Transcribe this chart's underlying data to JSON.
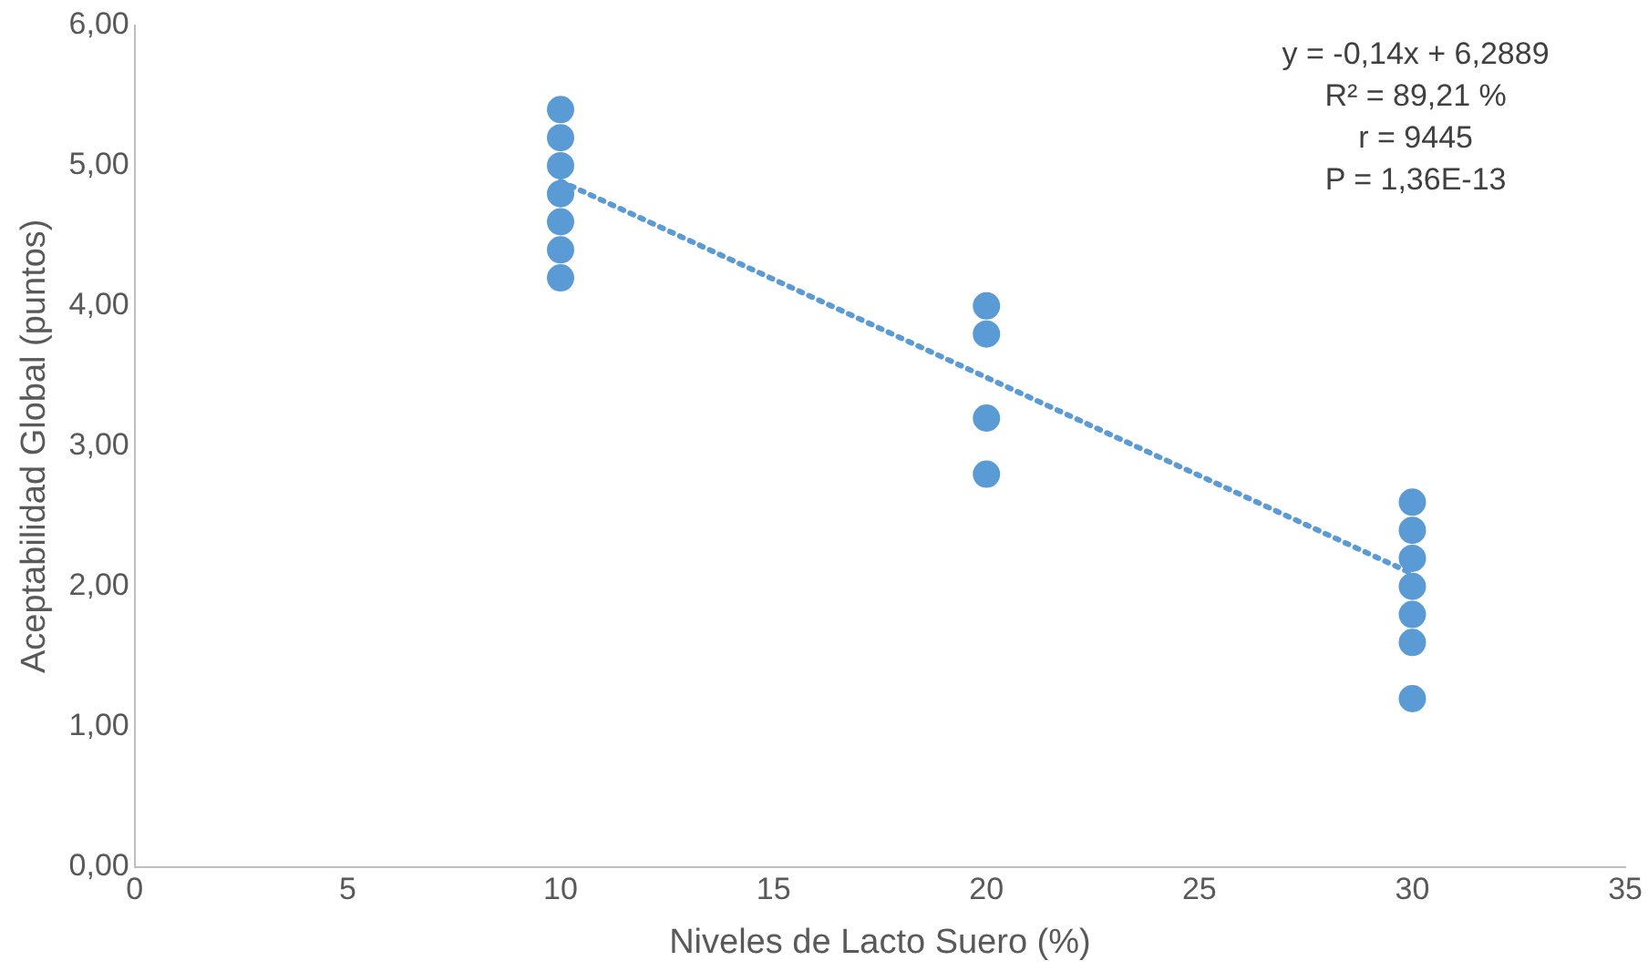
{
  "chart_data": {
    "type": "scatter",
    "xlabel": "Niveles de Lacto Suero (%)",
    "ylabel": "Aceptabilidad Global (puntos)",
    "annotations": [
      "y = -0,14x + 6,2889",
      "R² = 89,21 %",
      "r = 9445",
      "P = 1,36E-13"
    ],
    "grid": false,
    "legend": false,
    "marker": "circle",
    "xlim": [
      0,
      35
    ],
    "xticks": [
      0,
      5,
      10,
      15,
      20,
      25,
      30,
      35
    ],
    "ylim": [
      0,
      6
    ],
    "yticks": [
      {
        "value": 0,
        "label": "0,00"
      },
      {
        "value": 1,
        "label": "1,00"
      },
      {
        "value": 2,
        "label": "2,00"
      },
      {
        "value": 3,
        "label": "3,00"
      },
      {
        "value": 4,
        "label": "4,00"
      },
      {
        "value": 5,
        "label": "5,00"
      },
      {
        "value": 6,
        "label": "6,00"
      }
    ],
    "series": [
      {
        "color": "#5b9bd5",
        "x": [
          10,
          10,
          10,
          10,
          10,
          10,
          10,
          20,
          20,
          20,
          20,
          30,
          30,
          30,
          30,
          30,
          30,
          30
        ],
        "values": [
          5.4,
          5.2,
          5.0,
          4.8,
          4.6,
          4.4,
          4.2,
          4.0,
          3.8,
          3.2,
          2.8,
          2.6,
          2.4,
          2.2,
          2.0,
          1.8,
          1.6,
          1.2
        ]
      },
      {
        "type": "line",
        "color": "#5b9bd5",
        "line_style": "dotted",
        "marker": "none",
        "x": [
          10,
          30
        ],
        "values": [
          4.89,
          2.09
        ]
      }
    ]
  }
}
